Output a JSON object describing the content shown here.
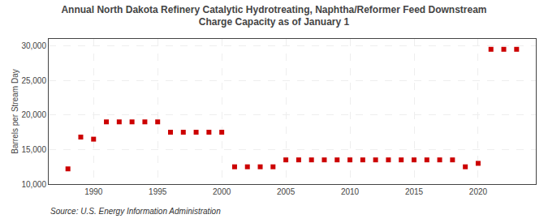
{
  "chart_data": {
    "type": "scatter",
    "title": "Annual North Dakota Refinery Catalytic Hydrotreating, Naphtha/Reformer Feed Downstream\nCharge Capacity as of January 1",
    "ylabel": "Barrels per Stream Day",
    "annotations": [
      "Source: U.S. Energy Information Administration"
    ],
    "x": [
      1988,
      1989,
      1990,
      1991,
      1992,
      1993,
      1994,
      1995,
      1996,
      1997,
      1998,
      1999,
      2000,
      2001,
      2002,
      2003,
      2004,
      2005,
      2006,
      2007,
      2008,
      2009,
      2010,
      2011,
      2012,
      2013,
      2014,
      2015,
      2016,
      2017,
      2018,
      2019,
      2020,
      2021,
      2022,
      2023
    ],
    "values": [
      12200,
      16800,
      16500,
      19000,
      19000,
      19000,
      19000,
      19000,
      17500,
      17500,
      17500,
      17500,
      17500,
      12500,
      12500,
      12500,
      12500,
      13500,
      13500,
      13500,
      13500,
      13500,
      13500,
      13500,
      13500,
      13500,
      13500,
      13500,
      13500,
      13500,
      13500,
      12500,
      13000,
      29500,
      29500,
      29500
    ],
    "color": "#cc0000",
    "marker": "square",
    "xlim": [
      1986.5,
      2024.5
    ],
    "xticks": [
      1990,
      1995,
      2000,
      2005,
      2010,
      2015,
      2020
    ],
    "ylim": [
      10000,
      31000
    ],
    "yticks": [
      {
        "value": 10000,
        "label": "10,000"
      },
      {
        "value": 15000,
        "label": "15,000"
      },
      {
        "value": 20000,
        "label": "20,000"
      },
      {
        "value": 25000,
        "label": "25,000"
      },
      {
        "value": 30000,
        "label": "30,000"
      }
    ],
    "grid": true
  }
}
